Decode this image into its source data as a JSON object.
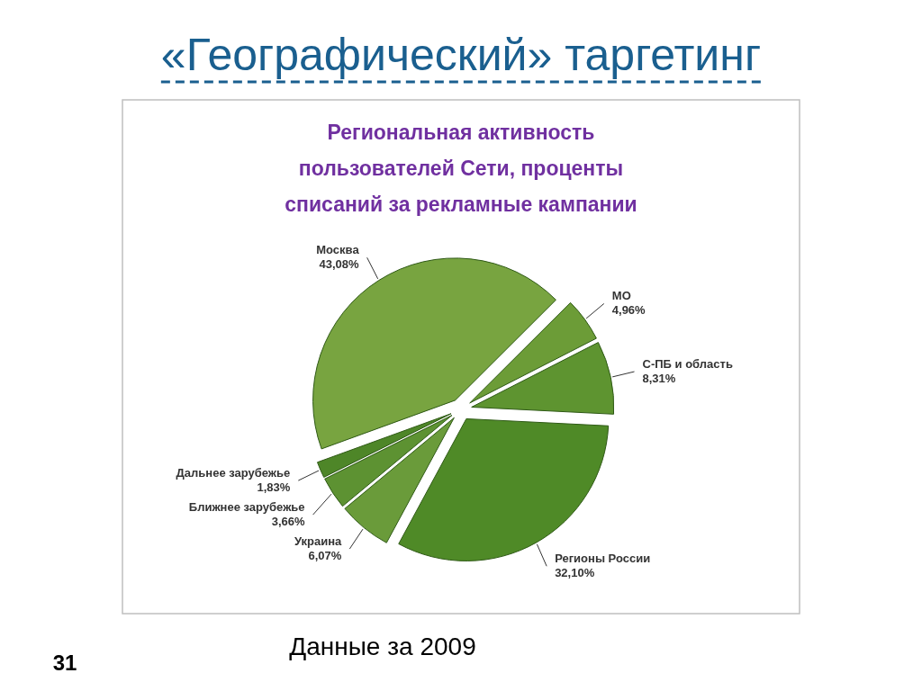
{
  "chart_data": {
    "type": "pie",
    "title": "«Географический» таргетинг",
    "subtitle": "Региональная активность пользователей Сети, проценты списаний за рекламные кампании",
    "categories": [
      "Москва",
      "МО",
      "С-ПБ и область",
      "Регионы России",
      "Украина",
      "Ближнее зарубежье",
      "Дальнее зарубежье"
    ],
    "values": [
      43.08,
      4.96,
      8.31,
      32.1,
      6.07,
      3.66,
      1.83
    ],
    "value_labels": [
      "43,08%",
      "4,96%",
      "8,31%",
      "32,10%",
      "6,07%",
      "3,66%",
      "1,83%"
    ],
    "colors": [
      "#78a440",
      "#6c9c37",
      "#5e9430",
      "#4f8a27",
      "#6a9b3a",
      "#5d9232",
      "#4e8628"
    ],
    "annotations": [
      "Данные за 2009",
      "31"
    ]
  }
}
